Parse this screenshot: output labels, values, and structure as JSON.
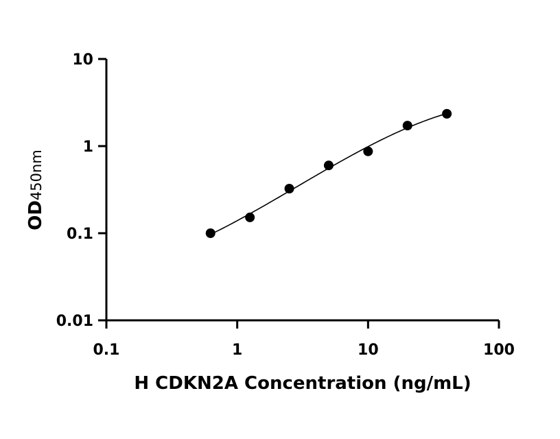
{
  "chart_data": {
    "type": "scatter",
    "xlabel": "H CDKN2A Concentration (ng/mL)",
    "ylabel": "OD",
    "ylabel_subscript": "450nm",
    "x_scale": "log",
    "y_scale": "log",
    "xlim": [
      0.1,
      100
    ],
    "ylim": [
      0.01,
      10
    ],
    "x_ticks": [
      "0.1",
      "1",
      "10",
      "100"
    ],
    "y_ticks": [
      "0.01",
      "0.1",
      "1",
      "10"
    ],
    "grid": false,
    "series": [
      {
        "x": [
          0.625,
          1.25,
          2.5,
          5,
          10,
          20,
          40
        ],
        "y": [
          0.1,
          0.152,
          0.325,
          0.6,
          0.87,
          1.72,
          2.35
        ]
      }
    ],
    "fit_curve": true,
    "color": "#000000"
  }
}
